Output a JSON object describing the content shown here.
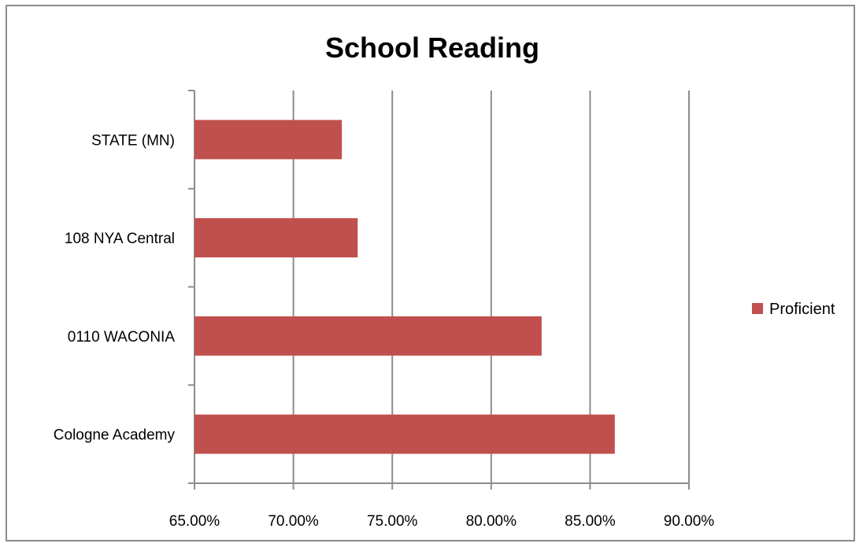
{
  "chart_data": {
    "type": "bar",
    "orientation": "horizontal",
    "title": "School Reading",
    "categories": [
      "Cologne Academy",
      "0110 WACONIA",
      "108 NYA Central",
      "STATE (MN)"
    ],
    "series": [
      {
        "name": "Proficient",
        "values": [
          0.8625,
          0.8255,
          0.7325,
          0.7245
        ],
        "color": "#C0504D"
      }
    ],
    "x_ticks": [
      "65.00%",
      "70.00%",
      "75.00%",
      "80.00%",
      "85.00%",
      "90.00%"
    ],
    "xlim": [
      0.65,
      0.9
    ],
    "grid": true,
    "legend_position": "right"
  }
}
